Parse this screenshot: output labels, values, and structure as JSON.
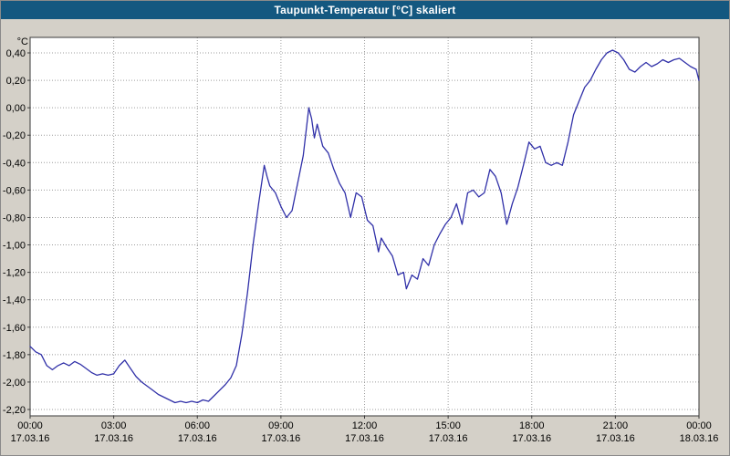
{
  "window": {
    "title": "Taupunkt-Temperatur [°C] skaliert"
  },
  "colors": {
    "title_bar": "#145880",
    "title_text": "#ffffff",
    "background": "#d4d0c8",
    "plot_bg": "#ffffff",
    "grid": "#9c9c9c",
    "border": "#3a3a3a",
    "line": "#3030a8",
    "label": "#000000"
  },
  "chart_data": {
    "type": "line",
    "title": "Taupunkt-Temperatur [°C] skaliert",
    "unit_label": "°C",
    "grid": true,
    "legend": false,
    "xlim": [
      0,
      24
    ],
    "ylim": [
      -2.2,
      0.4
    ],
    "x_ticks_hours": [
      0,
      3,
      6,
      9,
      12,
      15,
      18,
      21,
      24
    ],
    "x_tick_labels": [
      "00:00",
      "03:00",
      "06:00",
      "09:00",
      "12:00",
      "15:00",
      "18:00",
      "21:00",
      "00:00"
    ],
    "x_date_labels": [
      "17.03.16",
      "17.03.16",
      "17.03.16",
      "17.03.16",
      "17.03.16",
      "17.03.16",
      "17.03.16",
      "17.03.16",
      "18.03.16"
    ],
    "y_ticks": [
      0.4,
      0.2,
      0.0,
      -0.2,
      -0.4,
      -0.6,
      -0.8,
      -1.0,
      -1.2,
      -1.4,
      -1.6,
      -1.8,
      -2.0,
      -2.2
    ],
    "y_tick_labels": [
      "0,40",
      "0,20",
      "0,00",
      "-0,20",
      "-0,40",
      "-0,60",
      "-0,80",
      "-1,00",
      "-1,20",
      "-1,40",
      "-1,60",
      "-1,80",
      "-2,00",
      "-2,20"
    ],
    "series": [
      {
        "name": "Taupunkt-Temperatur",
        "color": "#3030a8",
        "points": [
          [
            0.0,
            -1.74
          ],
          [
            0.2,
            -1.78
          ],
          [
            0.4,
            -1.8
          ],
          [
            0.6,
            -1.88
          ],
          [
            0.8,
            -1.91
          ],
          [
            1.0,
            -1.88
          ],
          [
            1.2,
            -1.86
          ],
          [
            1.4,
            -1.88
          ],
          [
            1.6,
            -1.85
          ],
          [
            1.8,
            -1.87
          ],
          [
            2.0,
            -1.9
          ],
          [
            2.2,
            -1.93
          ],
          [
            2.4,
            -1.95
          ],
          [
            2.6,
            -1.94
          ],
          [
            2.8,
            -1.95
          ],
          [
            3.0,
            -1.94
          ],
          [
            3.2,
            -1.88
          ],
          [
            3.4,
            -1.84
          ],
          [
            3.6,
            -1.9
          ],
          [
            3.8,
            -1.96
          ],
          [
            4.0,
            -2.0
          ],
          [
            4.2,
            -2.03
          ],
          [
            4.4,
            -2.06
          ],
          [
            4.6,
            -2.09
          ],
          [
            4.8,
            -2.11
          ],
          [
            5.0,
            -2.13
          ],
          [
            5.2,
            -2.15
          ],
          [
            5.4,
            -2.14
          ],
          [
            5.6,
            -2.15
          ],
          [
            5.8,
            -2.14
          ],
          [
            6.0,
            -2.15
          ],
          [
            6.2,
            -2.13
          ],
          [
            6.4,
            -2.14
          ],
          [
            6.6,
            -2.1
          ],
          [
            6.8,
            -2.06
          ],
          [
            7.0,
            -2.02
          ],
          [
            7.2,
            -1.97
          ],
          [
            7.4,
            -1.88
          ],
          [
            7.6,
            -1.65
          ],
          [
            7.8,
            -1.35
          ],
          [
            8.0,
            -1.0
          ],
          [
            8.2,
            -0.7
          ],
          [
            8.4,
            -0.42
          ],
          [
            8.5,
            -0.5
          ],
          [
            8.6,
            -0.57
          ],
          [
            8.8,
            -0.62
          ],
          [
            9.0,
            -0.72
          ],
          [
            9.2,
            -0.8
          ],
          [
            9.4,
            -0.75
          ],
          [
            9.6,
            -0.55
          ],
          [
            9.8,
            -0.35
          ],
          [
            10.0,
            0.0
          ],
          [
            10.1,
            -0.08
          ],
          [
            10.2,
            -0.22
          ],
          [
            10.3,
            -0.12
          ],
          [
            10.5,
            -0.28
          ],
          [
            10.7,
            -0.33
          ],
          [
            10.9,
            -0.45
          ],
          [
            11.1,
            -0.55
          ],
          [
            11.3,
            -0.62
          ],
          [
            11.5,
            -0.8
          ],
          [
            11.7,
            -0.62
          ],
          [
            11.9,
            -0.65
          ],
          [
            12.1,
            -0.82
          ],
          [
            12.3,
            -0.86
          ],
          [
            12.5,
            -1.05
          ],
          [
            12.6,
            -0.95
          ],
          [
            12.8,
            -1.02
          ],
          [
            13.0,
            -1.08
          ],
          [
            13.2,
            -1.22
          ],
          [
            13.4,
            -1.2
          ],
          [
            13.5,
            -1.32
          ],
          [
            13.7,
            -1.22
          ],
          [
            13.9,
            -1.25
          ],
          [
            14.1,
            -1.1
          ],
          [
            14.3,
            -1.15
          ],
          [
            14.5,
            -1.0
          ],
          [
            14.7,
            -0.92
          ],
          [
            14.9,
            -0.85
          ],
          [
            15.1,
            -0.8
          ],
          [
            15.3,
            -0.7
          ],
          [
            15.5,
            -0.85
          ],
          [
            15.7,
            -0.62
          ],
          [
            15.9,
            -0.6
          ],
          [
            16.1,
            -0.65
          ],
          [
            16.3,
            -0.62
          ],
          [
            16.5,
            -0.45
          ],
          [
            16.7,
            -0.5
          ],
          [
            16.9,
            -0.62
          ],
          [
            17.1,
            -0.85
          ],
          [
            17.3,
            -0.7
          ],
          [
            17.5,
            -0.58
          ],
          [
            17.7,
            -0.42
          ],
          [
            17.9,
            -0.25
          ],
          [
            18.1,
            -0.3
          ],
          [
            18.3,
            -0.28
          ],
          [
            18.5,
            -0.4
          ],
          [
            18.7,
            -0.42
          ],
          [
            18.9,
            -0.4
          ],
          [
            19.1,
            -0.42
          ],
          [
            19.3,
            -0.25
          ],
          [
            19.5,
            -0.05
          ],
          [
            19.7,
            0.05
          ],
          [
            19.9,
            0.15
          ],
          [
            20.1,
            0.2
          ],
          [
            20.3,
            0.28
          ],
          [
            20.5,
            0.35
          ],
          [
            20.7,
            0.4
          ],
          [
            20.9,
            0.42
          ],
          [
            21.1,
            0.4
          ],
          [
            21.3,
            0.35
          ],
          [
            21.5,
            0.28
          ],
          [
            21.7,
            0.26
          ],
          [
            21.9,
            0.3
          ],
          [
            22.1,
            0.33
          ],
          [
            22.3,
            0.3
          ],
          [
            22.5,
            0.32
          ],
          [
            22.7,
            0.35
          ],
          [
            22.9,
            0.33
          ],
          [
            23.1,
            0.35
          ],
          [
            23.3,
            0.36
          ],
          [
            23.5,
            0.33
          ],
          [
            23.7,
            0.3
          ],
          [
            23.9,
            0.28
          ],
          [
            24.0,
            0.2
          ]
        ]
      }
    ]
  }
}
